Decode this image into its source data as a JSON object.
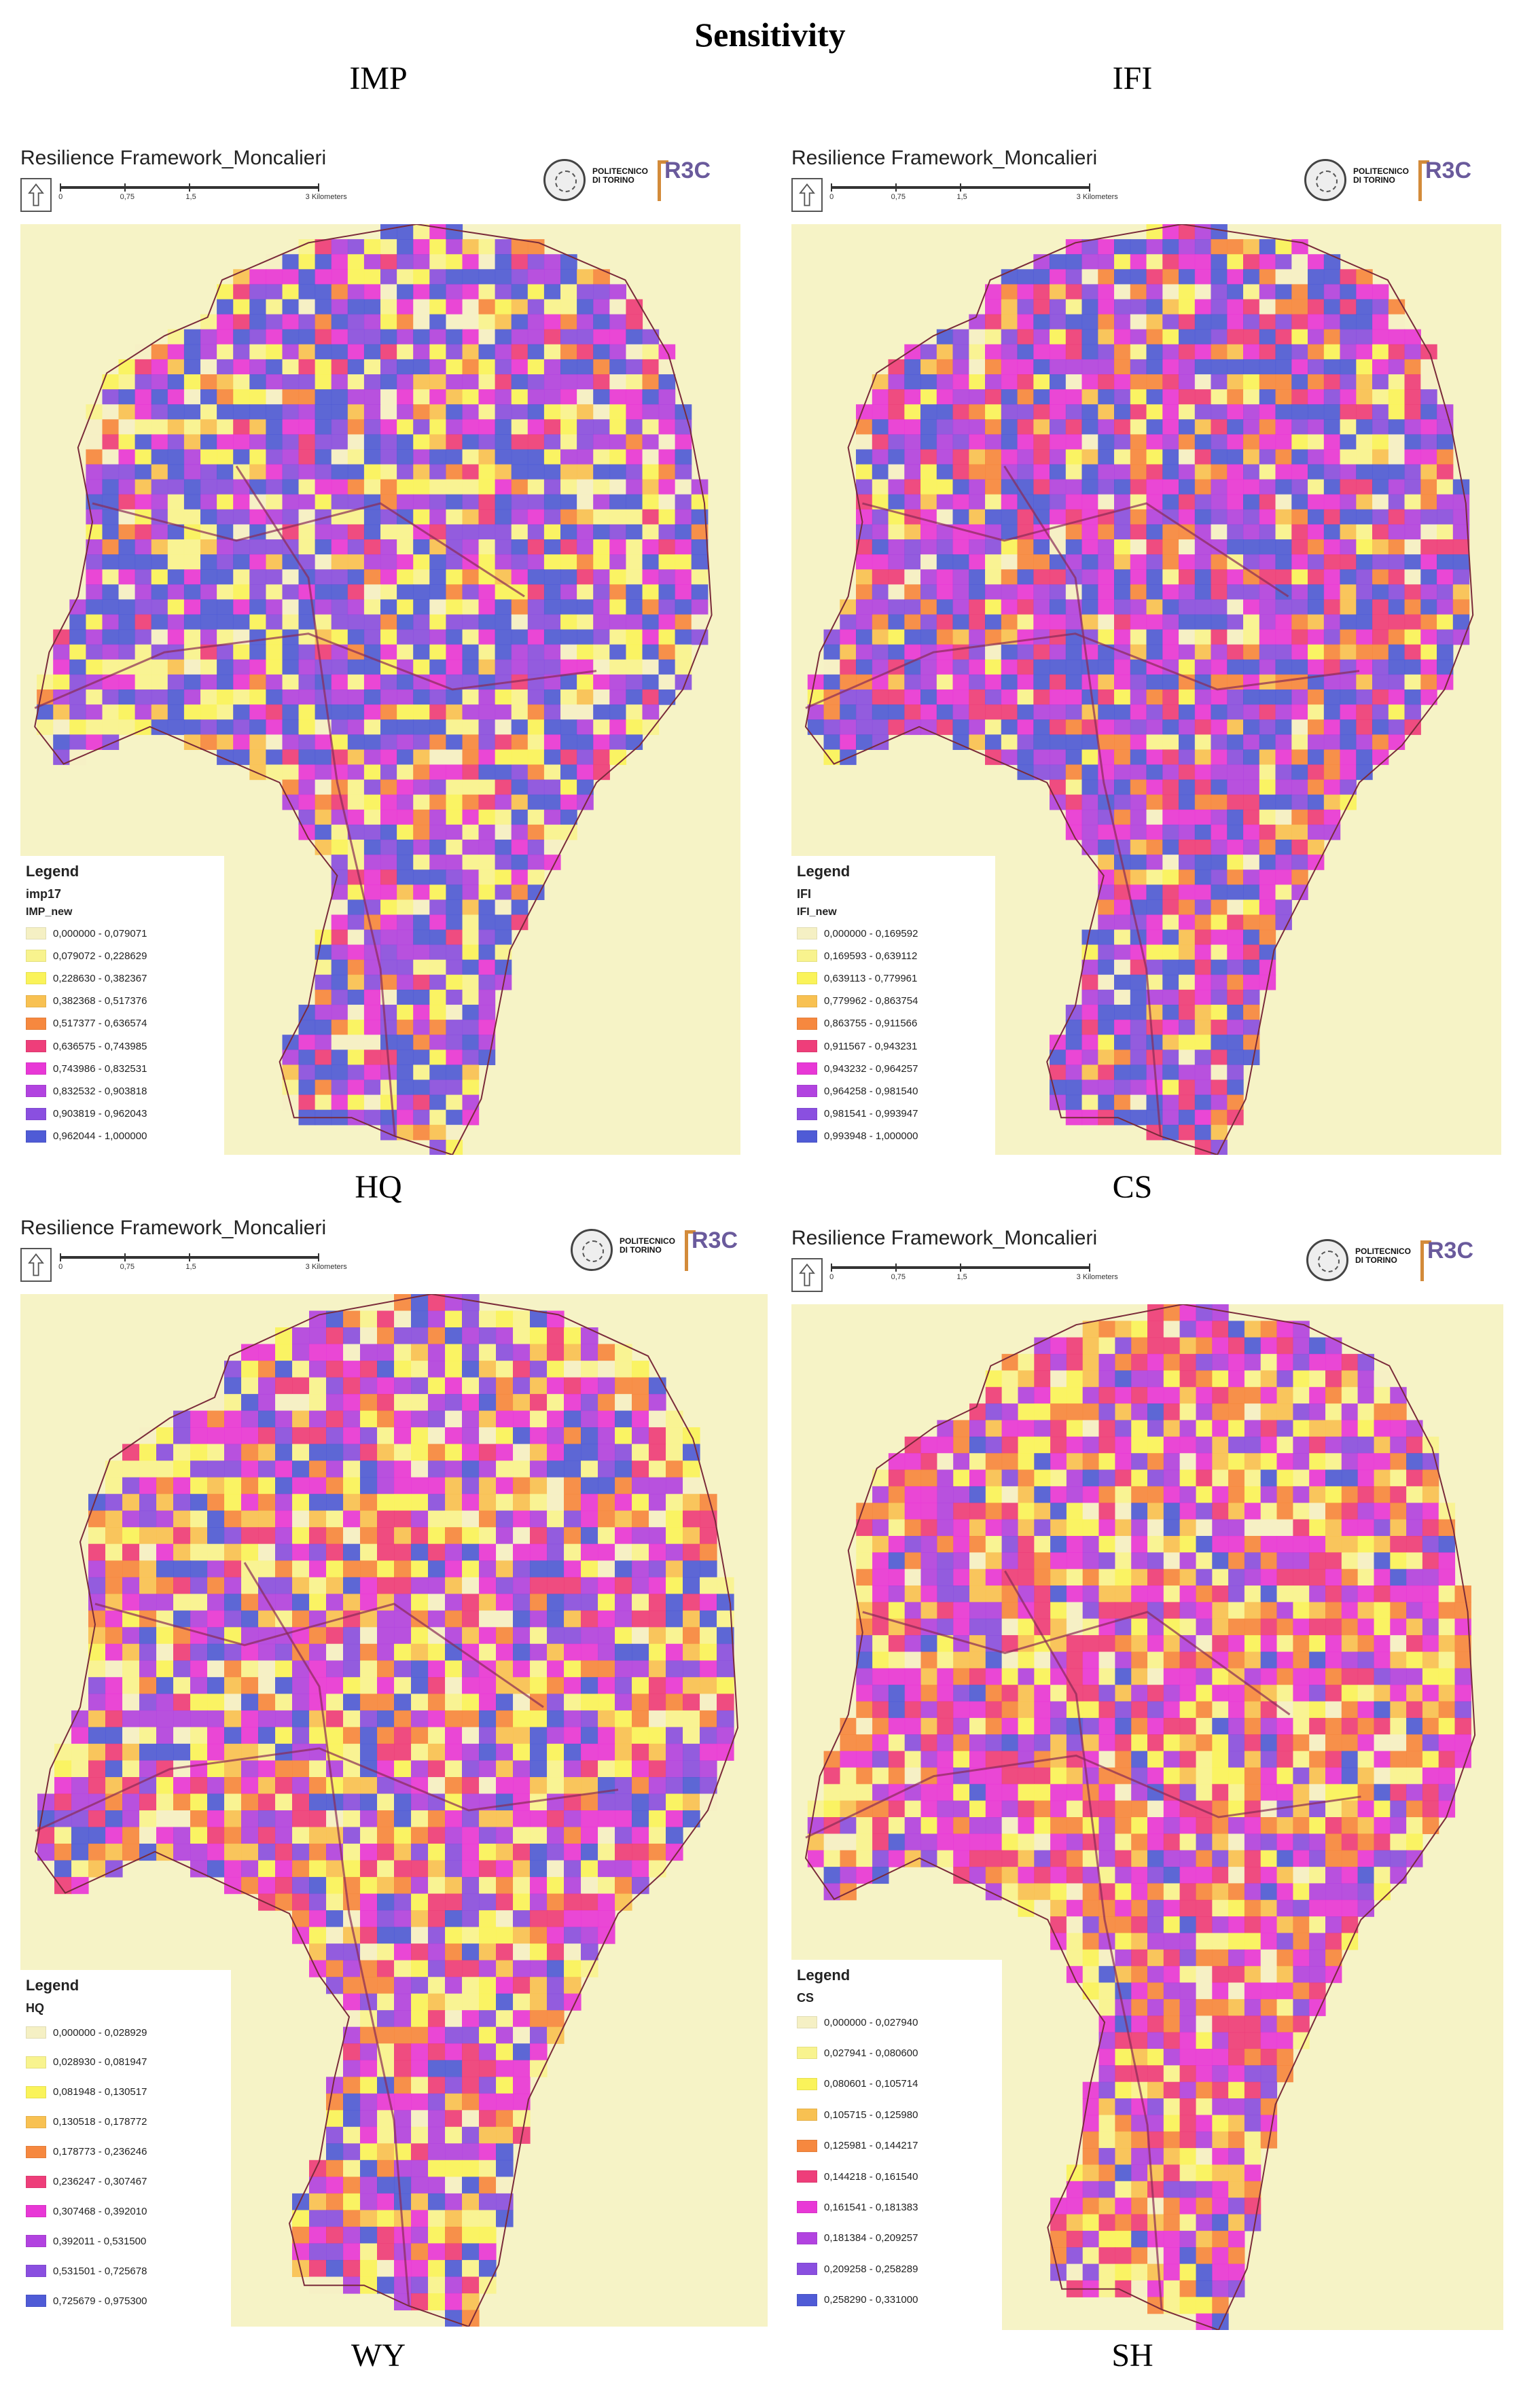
{
  "title": "Sensitivity",
  "top_labels": [
    "IMP",
    "IFI"
  ],
  "mid_labels": [
    "HQ",
    "CS"
  ],
  "bottom_labels": [
    "WY",
    "SH"
  ],
  "colors": {
    "background": "#f6f3c6",
    "boundary": "#7a2b3a"
  },
  "panels": [
    {
      "map_title": "Resilience Framework_Moncalieri",
      "scale_ticks": [
        "0",
        "0,75",
        "1,5",
        "3 Kilometers"
      ],
      "logo_text": [
        "POLITECNICO",
        "DI TORINO"
      ],
      "logo_brand": "R3C",
      "legend_title": "Legend",
      "legend_layer": "imp17",
      "legend_field": "IMP_new",
      "classes": [
        {
          "label": "0,000000 - 0,079071",
          "color": "#f5f0c4"
        },
        {
          "label": "0,079072 - 0,228629",
          "color": "#f8f38e"
        },
        {
          "label": "0,228630 - 0,382367",
          "color": "#faf35a"
        },
        {
          "label": "0,382368 - 0,517376",
          "color": "#f8c152"
        },
        {
          "label": "0,517377 - 0,636574",
          "color": "#f6883f"
        },
        {
          "label": "0,636575 - 0,743985",
          "color": "#ee3e7a"
        },
        {
          "label": "0,743986 - 0,832531",
          "color": "#e838d6"
        },
        {
          "label": "0,832532 - 0,903818",
          "color": "#b243e0"
        },
        {
          "label": "0,903819 - 0,962043",
          "color": "#8a4fe0"
        },
        {
          "label": "0,962044 - 1,000000",
          "color": "#4f5bd6"
        }
      ]
    },
    {
      "map_title": "Resilience Framework_Moncalieri",
      "scale_ticks": [
        "0",
        "0,75",
        "1,5",
        "3 Kilometers"
      ],
      "logo_text": [
        "POLITECNICO",
        "DI TORINO"
      ],
      "logo_brand": "R3C",
      "legend_title": "Legend",
      "legend_layer": "IFI",
      "legend_field": "IFI_new",
      "classes": [
        {
          "label": "0,000000 - 0,169592",
          "color": "#f5f0c4"
        },
        {
          "label": "0,169593 - 0,639112",
          "color": "#f8f38e"
        },
        {
          "label": "0,639113 - 0,779961",
          "color": "#faf35a"
        },
        {
          "label": "0,779962 - 0,863754",
          "color": "#f8c152"
        },
        {
          "label": "0,863755 - 0,911566",
          "color": "#f6883f"
        },
        {
          "label": "0,911567 - 0,943231",
          "color": "#ee3e7a"
        },
        {
          "label": "0,943232 - 0,964257",
          "color": "#e838d6"
        },
        {
          "label": "0,964258 - 0,981540",
          "color": "#b243e0"
        },
        {
          "label": "0,981541 - 0,993947",
          "color": "#8a4fe0"
        },
        {
          "label": "0,993948 - 1,000000",
          "color": "#4f5bd6"
        }
      ]
    },
    {
      "map_title": "Resilience Framework_Moncalieri",
      "scale_ticks": [
        "0",
        "0,75",
        "1,5",
        "3 Kilometers"
      ],
      "logo_text": [
        "POLITECNICO",
        "DI TORINO"
      ],
      "logo_brand": "R3C",
      "legend_title": "Legend",
      "legend_layer": "HQ",
      "legend_field": "",
      "classes": [
        {
          "label": "0,000000 - 0,028929",
          "color": "#f5f0c4"
        },
        {
          "label": "0,028930 - 0,081947",
          "color": "#f8f38e"
        },
        {
          "label": "0,081948 - 0,130517",
          "color": "#faf35a"
        },
        {
          "label": "0,130518 - 0,178772",
          "color": "#f8c152"
        },
        {
          "label": "0,178773 - 0,236246",
          "color": "#f6883f"
        },
        {
          "label": "0,236247 - 0,307467",
          "color": "#ee3e7a"
        },
        {
          "label": "0,307468 - 0,392010",
          "color": "#e838d6"
        },
        {
          "label": "0,392011 - 0,531500",
          "color": "#b243e0"
        },
        {
          "label": "0,531501 - 0,725678",
          "color": "#8a4fe0"
        },
        {
          "label": "0,725679 - 0,975300",
          "color": "#4f5bd6"
        }
      ]
    },
    {
      "map_title": "Resilience Framework_Moncalieri",
      "scale_ticks": [
        "0",
        "0,75",
        "1,5",
        "3 Kilometers"
      ],
      "logo_text": [
        "POLITECNICO",
        "DI TORINO"
      ],
      "logo_brand": "R3C",
      "legend_title": "Legend",
      "legend_layer": "CS",
      "legend_field": "",
      "classes": [
        {
          "label": "0,000000 - 0,027940",
          "color": "#f5f0c4"
        },
        {
          "label": "0,027941 - 0,080600",
          "color": "#f8f38e"
        },
        {
          "label": "0,080601 - 0,105714",
          "color": "#faf35a"
        },
        {
          "label": "0,105715 - 0,125980",
          "color": "#f8c152"
        },
        {
          "label": "0,125981 - 0,144217",
          "color": "#f6883f"
        },
        {
          "label": "0,144218 - 0,161540",
          "color": "#ee3e7a"
        },
        {
          "label": "0,161541 - 0,181383",
          "color": "#e838d6"
        },
        {
          "label": "0,181384 - 0,209257",
          "color": "#b243e0"
        },
        {
          "label": "0,209258 - 0,258289",
          "color": "#8a4fe0"
        },
        {
          "label": "0,258290 - 0,331000",
          "color": "#4f5bd6"
        }
      ]
    }
  ]
}
